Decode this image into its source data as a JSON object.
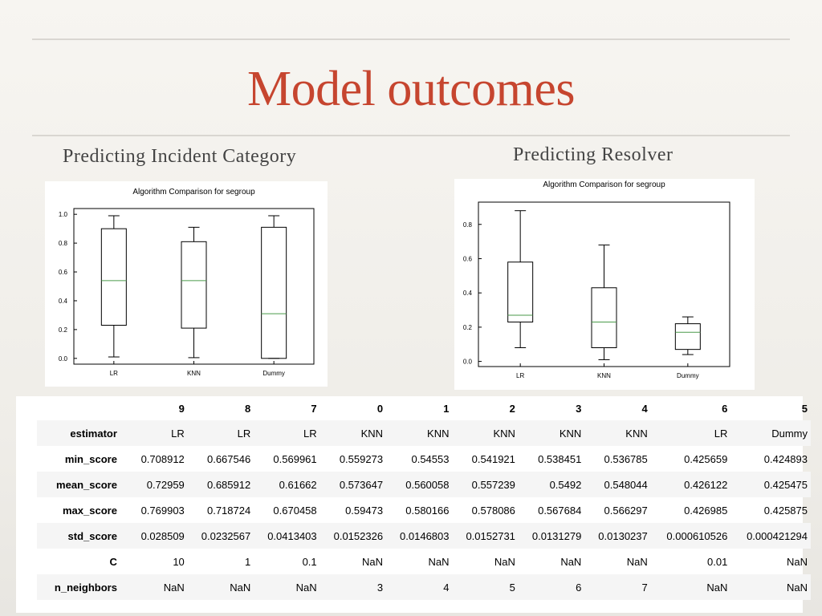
{
  "slide": {
    "title": "Model outcomes",
    "left_heading": "Predicting Incident Category",
    "right_heading": "Predicting Resolver"
  },
  "chart_data": [
    {
      "type": "boxplot",
      "title": "Algorithm Comparison for segroup",
      "categories": [
        "LR",
        "KNN",
        "Dummy"
      ],
      "boxes": [
        {
          "category": "LR",
          "whisker_low": 0.01,
          "q1": 0.23,
          "median": 0.54,
          "q3": 0.9,
          "whisker_high": 0.99
        },
        {
          "category": "KNN",
          "whisker_low": 0.005,
          "q1": 0.21,
          "median": 0.54,
          "q3": 0.81,
          "whisker_high": 0.91
        },
        {
          "category": "Dummy",
          "whisker_low": 0.0,
          "q1": 0.0,
          "median": 0.31,
          "q3": 0.91,
          "whisker_high": 0.99
        }
      ],
      "yticks": [
        "0.0",
        "0.2",
        "0.4",
        "0.6",
        "0.8",
        "1.0"
      ],
      "ylim": [
        -0.04,
        1.04
      ],
      "colors": {
        "box": "#000000",
        "median": "#4a9a4a"
      }
    },
    {
      "type": "boxplot",
      "title": "Algorithm Comparison for segroup",
      "categories": [
        "LR",
        "KNN",
        "Dummy"
      ],
      "boxes": [
        {
          "category": "LR",
          "whisker_low": 0.08,
          "q1": 0.23,
          "median": 0.27,
          "q3": 0.58,
          "whisker_high": 0.88
        },
        {
          "category": "KNN",
          "whisker_low": 0.01,
          "q1": 0.08,
          "median": 0.23,
          "q3": 0.43,
          "whisker_high": 0.68
        },
        {
          "category": "Dummy",
          "whisker_low": 0.04,
          "q1": 0.07,
          "median": 0.17,
          "q3": 0.22,
          "whisker_high": 0.26
        }
      ],
      "yticks": [
        "0.0",
        "0.2",
        "0.4",
        "0.6",
        "0.8"
      ],
      "ylim": [
        -0.03,
        0.93
      ],
      "colors": {
        "box": "#000000",
        "median": "#4a9a4a"
      }
    }
  ],
  "table": {
    "columns": [
      "9",
      "8",
      "7",
      "0",
      "1",
      "2",
      "3",
      "4",
      "6",
      "5"
    ],
    "rows": [
      {
        "label": "estimator",
        "cells": [
          "LR",
          "LR",
          "LR",
          "KNN",
          "KNN",
          "KNN",
          "KNN",
          "KNN",
          "LR",
          "Dummy"
        ]
      },
      {
        "label": "min_score",
        "cells": [
          "0.708912",
          "0.667546",
          "0.569961",
          "0.559273",
          "0.54553",
          "0.541921",
          "0.538451",
          "0.536785",
          "0.425659",
          "0.424893"
        ]
      },
      {
        "label": "mean_score",
        "cells": [
          "0.72959",
          "0.685912",
          "0.61662",
          "0.573647",
          "0.560058",
          "0.557239",
          "0.5492",
          "0.548044",
          "0.426122",
          "0.425475"
        ]
      },
      {
        "label": "max_score",
        "cells": [
          "0.769903",
          "0.718724",
          "0.670458",
          "0.59473",
          "0.580166",
          "0.578086",
          "0.567684",
          "0.566297",
          "0.426985",
          "0.425875"
        ]
      },
      {
        "label": "std_score",
        "cells": [
          "0.028509",
          "0.0232567",
          "0.0413403",
          "0.0152326",
          "0.0146803",
          "0.0152731",
          "0.0131279",
          "0.0130237",
          "0.000610526",
          "0.000421294"
        ]
      },
      {
        "label": "C",
        "cells": [
          "10",
          "1",
          "0.1",
          "NaN",
          "NaN",
          "NaN",
          "NaN",
          "NaN",
          "0.01",
          "NaN"
        ]
      },
      {
        "label": "n_neighbors",
        "cells": [
          "NaN",
          "NaN",
          "NaN",
          "3",
          "4",
          "5",
          "6",
          "7",
          "NaN",
          "NaN"
        ]
      }
    ]
  }
}
